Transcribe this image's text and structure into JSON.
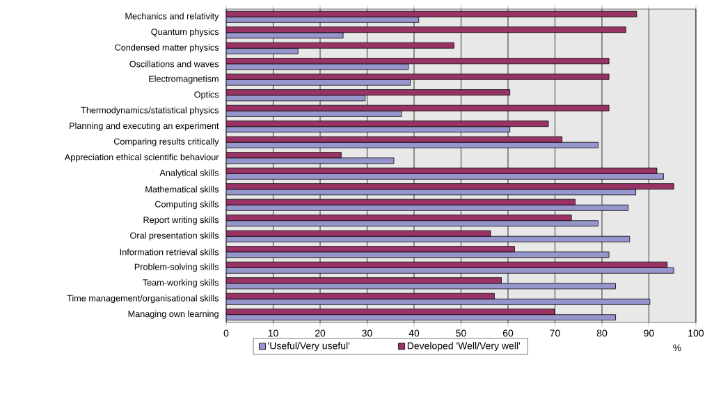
{
  "chart_data": {
    "type": "bar",
    "orientation": "horizontal",
    "categories": [
      "Mechanics and relativity",
      "Quantum physics",
      "Condensed matter physics",
      "Oscillations and waves",
      "Electromagnetism",
      "Optics",
      "Thermodynamics/statistical physics",
      "Planning and executing an experiment",
      "Comparing results critically",
      "Appreciation ethical scientific behaviour",
      "Analytical skills",
      "Mathematical skills",
      "Computing skills",
      "Report writing skills",
      "Oral presentation skills",
      "Information retrieval skills",
      "Problem-solving skills",
      "Team-working skills",
      "Time management/organisational skills",
      "Managing own learning"
    ],
    "series": [
      {
        "name": "'Useful/Very useful'",
        "color": "#9696cc",
        "values": [
          41.0,
          24.9,
          15.3,
          38.8,
          39.2,
          29.6,
          37.3,
          60.4,
          79.2,
          35.7,
          93.1,
          87.2,
          85.6,
          79.2,
          85.9,
          81.5,
          95.3,
          82.9,
          90.2,
          82.9
        ]
      },
      {
        "name": "Developed 'Well/Very well'",
        "color": "#993366",
        "values": [
          87.4,
          85.1,
          48.5,
          81.5,
          81.5,
          60.4,
          81.5,
          68.6,
          71.5,
          24.5,
          91.7,
          95.3,
          74.3,
          73.5,
          56.3,
          61.4,
          93.9,
          58.6,
          57.1,
          69.9
        ]
      }
    ],
    "xlim": [
      0,
      100
    ],
    "xticks": [
      0,
      10,
      20,
      30,
      40,
      50,
      60,
      70,
      80,
      90,
      100
    ],
    "xlabel": "%",
    "grid": "x",
    "legend": "bottom"
  }
}
